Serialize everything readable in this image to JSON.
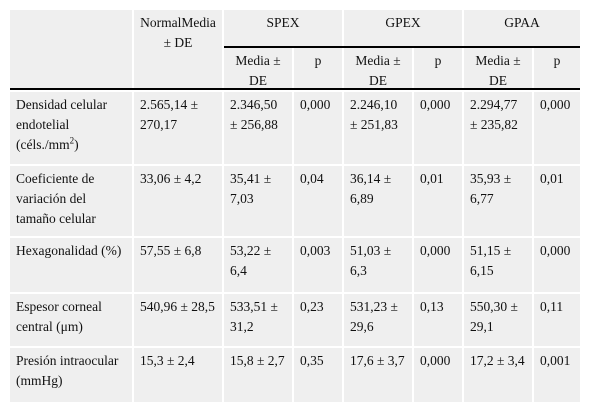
{
  "header": {
    "normal": "NormalMedia ± DE",
    "groups": [
      "SPEX",
      "GPEX",
      "GPAA"
    ],
    "sub_mean": "Media ± DE",
    "sub_p": "p"
  },
  "rows": [
    {
      "label_pre": "Densidad celular endotelial (céls./mm",
      "label_sup": "2",
      "label_post": ")",
      "normal": "2.565,14 ± 270,17",
      "spex_mean": "2.346,50 ± 256,88",
      "spex_p": "0,000",
      "gpex_mean": "2.246,10 ± 251,83",
      "gpex_p": "0,000",
      "gpaa_mean": "2.294,77 ± 235,82",
      "gpaa_p": "0,000"
    },
    {
      "label": "Coeficiente de variación del tamaño celular",
      "normal": "33,06 ± 4,2",
      "spex_mean": "35,41 ± 7,03",
      "spex_p": "0,04",
      "gpex_mean": "36,14 ± 6,89",
      "gpex_p": "0,01",
      "gpaa_mean": "35,93 ± 6,77",
      "gpaa_p": "0,01"
    },
    {
      "label": "Hexagonalidad (%)",
      "normal": "57,55 ± 6,8",
      "spex_mean": "53,22 ± 6,4",
      "spex_p": "0,003",
      "gpex_mean": "51,03 ± 6,3",
      "gpex_p": "0,000",
      "gpaa_mean": "51,15 ± 6,15",
      "gpaa_p": "0,000"
    },
    {
      "label": "Espesor corneal central (μm)",
      "normal": "540,96 ± 28,5",
      "spex_mean": "533,51 ± 31,2",
      "spex_p": "0,23",
      "gpex_mean": "531,23 ± 29,6",
      "gpex_p": "0,13",
      "gpaa_mean": "550,30 ± 29,1",
      "gpaa_p": "0,11"
    },
    {
      "label": "Presión intraocular (mmHg)",
      "normal": "15,3 ± 2,4",
      "spex_mean": "15,8 ± 2,7",
      "spex_p": "0,35",
      "gpex_mean": "17,6 ± 3,7",
      "gpex_p": "0,000",
      "gpaa_mean": "17,2 ± 3,4",
      "gpaa_p": "0,001"
    }
  ]
}
